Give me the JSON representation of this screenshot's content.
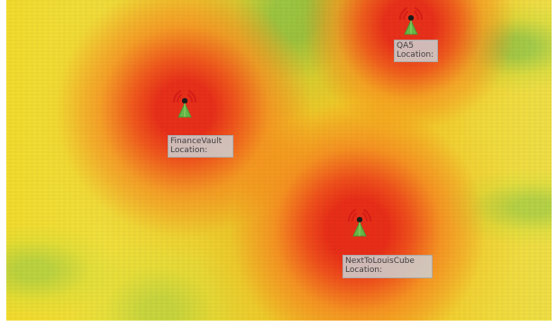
{
  "map": {
    "towers": [
      {
        "name": "QA5",
        "location_label": "Location:"
      },
      {
        "name": "FinanceVault",
        "location_label": "Location:"
      },
      {
        "name": "NextToLouisCube",
        "location_label": "Location:"
      }
    ],
    "icon_name": "wifi-tower-icon"
  }
}
